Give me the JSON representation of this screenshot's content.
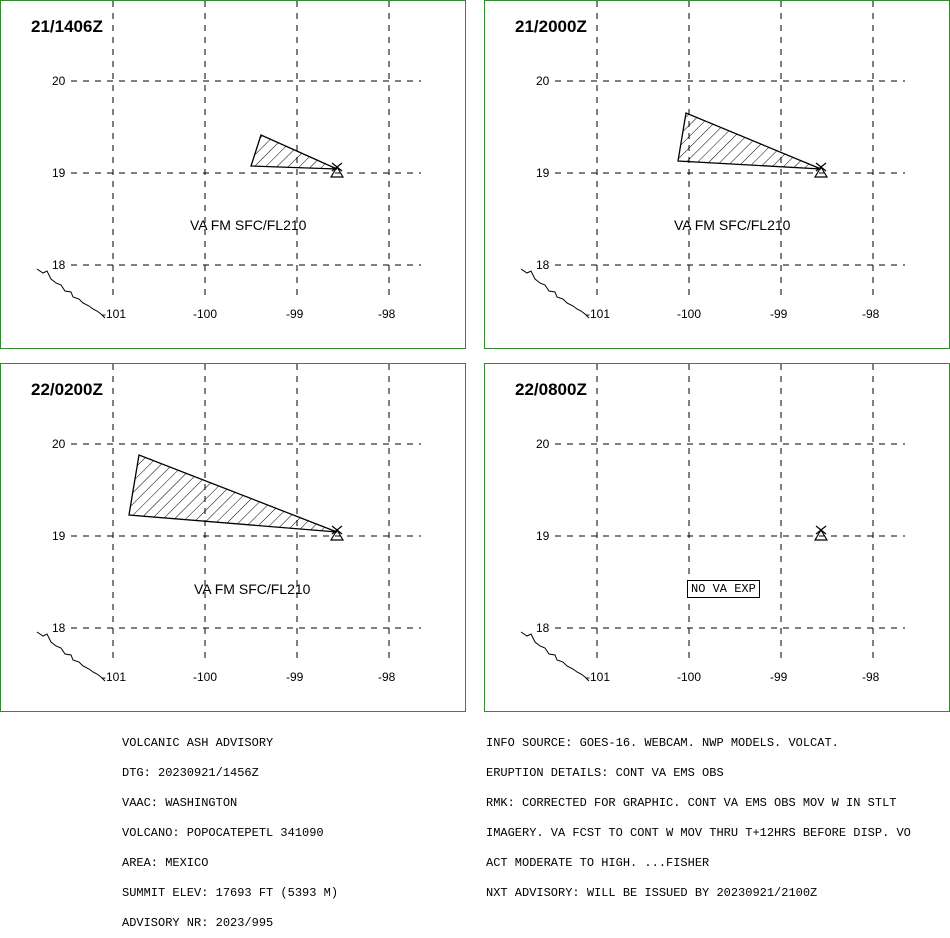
{
  "panels": [
    {
      "title": "21/1406Z",
      "va_label": "VA FM SFC/FL210",
      "no_va": ""
    },
    {
      "title": "21/2000Z",
      "va_label": "VA FM SFC/FL210",
      "no_va": ""
    },
    {
      "title": "22/0200Z",
      "va_label": "VA FM SFC/FL210",
      "no_va": ""
    },
    {
      "title": "22/0800Z",
      "va_label": "",
      "no_va": "NO VA EXP"
    }
  ],
  "axes": {
    "lat_labels": [
      "20",
      "19",
      "18"
    ],
    "lon_labels": [
      "-101",
      "-100",
      "-99",
      "-98"
    ]
  },
  "advisory_left": [
    "VOLCANIC ASH ADVISORY",
    "DTG: 20230921/1456Z",
    "VAAC: WASHINGTON",
    "VOLCANO: POPOCATEPETL 341090",
    "AREA: MEXICO",
    "SUMMIT ELEV: 17693 FT (5393 M)",
    "ADVISORY NR: 2023/995"
  ],
  "advisory_right": [
    "INFO SOURCE: GOES-16. WEBCAM. NWP MODELS. VOLCAT.",
    "ERUPTION DETAILS: CONT VA EMS OBS",
    "RMK: CORRECTED FOR GRAPHIC. CONT VA EMS OBS MOV W IN STLT",
    "IMAGERY. VA FCST TO CONT W MOV THRU T+12HRS BEFORE DISP. VO",
    "ACT MODERATE TO HIGH. ...FISHER",
    "NXT ADVISORY: WILL BE ISSUED BY 20230921/2100Z"
  ],
  "colors": {
    "panel_border": "#2e8b2e",
    "ink": "#000000"
  }
}
